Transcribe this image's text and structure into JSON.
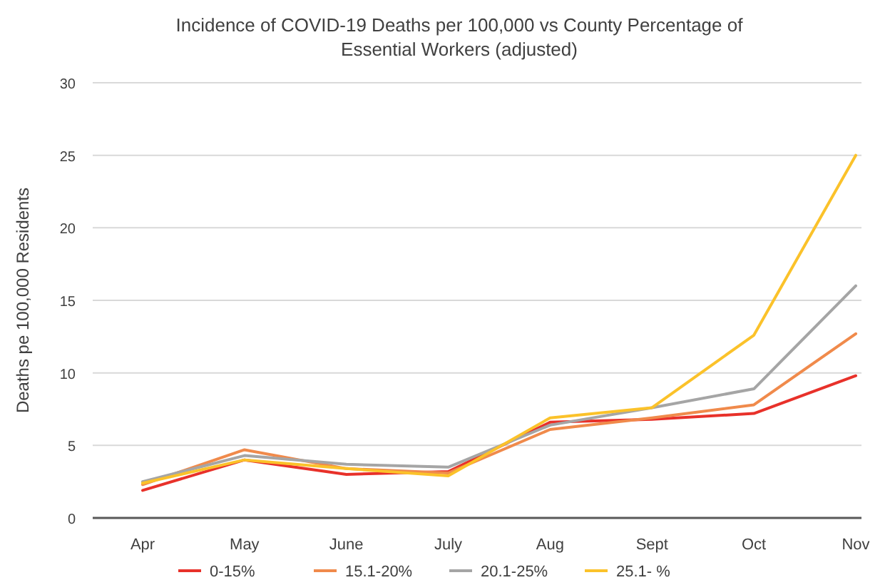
{
  "chart_data": {
    "type": "line",
    "title": "Incidence of COVID-19 Deaths per 100,000 vs County Percentage of Essential Workers (adjusted)",
    "ylabel": "Deaths pe 100,000 Residents",
    "categories": [
      "Apr",
      "May",
      "June",
      "July",
      "Aug",
      "Sept",
      "Oct",
      "Nov"
    ],
    "series": [
      {
        "name": "0-15%",
        "color": "#e8312a",
        "values": [
          1.9,
          4.0,
          3.0,
          3.2,
          6.6,
          6.8,
          7.2,
          9.8
        ]
      },
      {
        "name": "15.1-20%",
        "color": "#f08a4b",
        "values": [
          2.3,
          4.7,
          3.4,
          3.1,
          6.1,
          6.9,
          7.8,
          12.7
        ]
      },
      {
        "name": "20.1-25%",
        "color": "#a5a5a5",
        "values": [
          2.5,
          4.3,
          3.7,
          3.5,
          6.4,
          7.6,
          8.9,
          16.0
        ]
      },
      {
        "name": "25.1- %",
        "color": "#fbc22a",
        "values": [
          2.4,
          4.0,
          3.4,
          2.9,
          6.9,
          7.6,
          12.6,
          25.0
        ]
      }
    ],
    "ylim": [
      0,
      30
    ],
    "yticks": [
      0,
      5,
      10,
      15,
      20,
      25,
      30
    ],
    "grid": "y",
    "legend": "bottom",
    "marker": "none",
    "line_style": "solid"
  }
}
